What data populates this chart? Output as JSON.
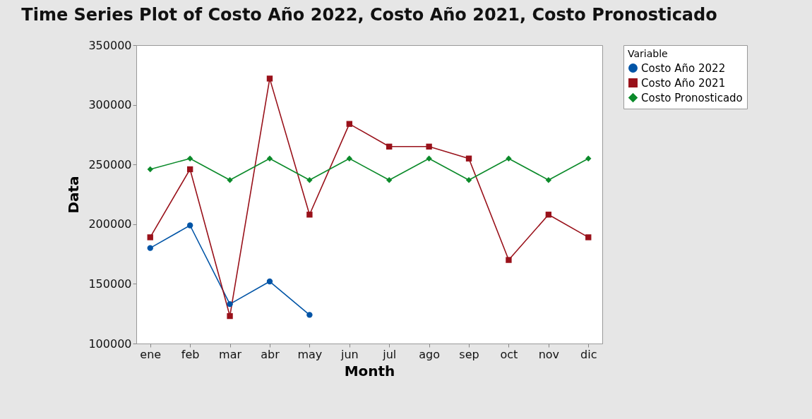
{
  "chart_data": {
    "type": "line",
    "title": "Time Series Plot of Costo Año 2022, Costo Año 2021, Costo Pronosticado",
    "xlabel": "Month",
    "ylabel": "Data",
    "legend_title": "Variable",
    "legend": "top right",
    "grid": false,
    "categories": [
      "ene",
      "feb",
      "mar",
      "abr",
      "may",
      "jun",
      "jul",
      "ago",
      "sep",
      "oct",
      "nov",
      "dic"
    ],
    "ylim": [
      100000,
      350000
    ],
    "yticks": [
      100000,
      150000,
      200000,
      250000,
      300000,
      350000
    ],
    "series": [
      {
        "name": "Costo Año 2022",
        "color": "#0054a6",
        "marker": "circle",
        "values": [
          180000,
          199000,
          133000,
          152000,
          124000,
          null,
          null,
          null,
          null,
          null,
          null,
          null
        ]
      },
      {
        "name": "Costo Año 2021",
        "color": "#99111a",
        "marker": "square",
        "values": [
          189000,
          246000,
          123000,
          322000,
          208000,
          284000,
          265000,
          265000,
          255000,
          170000,
          208000,
          189000
        ]
      },
      {
        "name": "Costo Pronosticado",
        "color": "#0b8a2a",
        "marker": "diamond",
        "values": [
          246000,
          255000,
          237000,
          255000,
          237000,
          255000,
          237000,
          255000,
          237000,
          255000,
          237000,
          255000
        ]
      }
    ]
  }
}
